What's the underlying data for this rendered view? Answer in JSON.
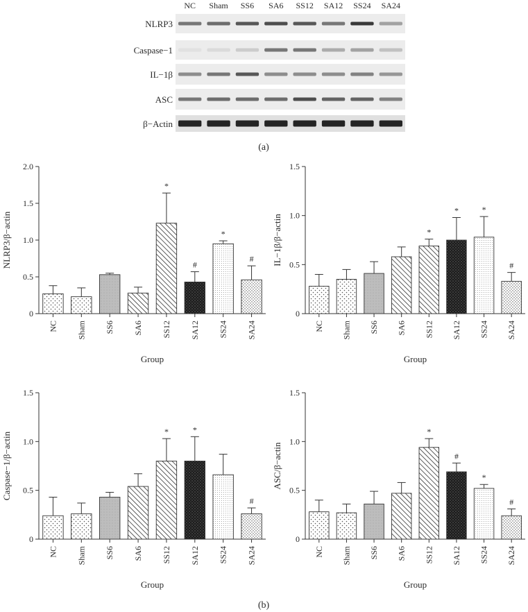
{
  "panel_a": {
    "label": "(a)",
    "lanes": [
      "NC",
      "Sham",
      "SS6",
      "SA6",
      "SS12",
      "SA12",
      "SS24",
      "SA24"
    ],
    "rows": [
      {
        "label": "NLRP3",
        "intensity": [
          0.55,
          0.6,
          0.7,
          0.75,
          0.7,
          0.55,
          0.85,
          0.35
        ]
      },
      {
        "label": "Caspase−1",
        "intensity": [
          0.05,
          0.08,
          0.15,
          0.55,
          0.55,
          0.3,
          0.35,
          0.2
        ]
      },
      {
        "label": "IL−1β",
        "intensity": [
          0.45,
          0.55,
          0.7,
          0.45,
          0.45,
          0.45,
          0.5,
          0.4
        ]
      },
      {
        "label": "ASC",
        "intensity": [
          0.55,
          0.6,
          0.6,
          0.6,
          0.75,
          0.65,
          0.65,
          0.5
        ]
      },
      {
        "label": "β−Actin",
        "intensity": [
          0.95,
          0.95,
          0.95,
          0.95,
          0.95,
          0.95,
          0.95,
          0.95
        ]
      }
    ]
  },
  "panel_b_label": "(b)",
  "chart_data": [
    {
      "type": "bar",
      "categories": [
        "NC",
        "Sham",
        "SS6",
        "SA6",
        "SS12",
        "SA12",
        "SS24",
        "SA24"
      ],
      "values": [
        0.27,
        0.23,
        0.53,
        0.28,
        1.23,
        0.43,
        0.95,
        0.46
      ],
      "errors": [
        0.11,
        0.12,
        0.02,
        0.08,
        0.41,
        0.14,
        0.04,
        0.19
      ],
      "marks": [
        "",
        "",
        "",
        "",
        "*",
        "#",
        "*",
        "#"
      ],
      "patterns": [
        "dots",
        "dots",
        "gray",
        "diag",
        "diag",
        "dark",
        "fine",
        "vlines"
      ],
      "title": "",
      "xlabel": "Group",
      "ylabel": "NLRP3/β−actin",
      "ylim": [
        0,
        2.0
      ],
      "yticks": [
        "0",
        "0.5",
        "1.0",
        "1.5",
        "2.0"
      ],
      "ytick_values": [
        0,
        0.5,
        1.0,
        1.5,
        2.0
      ]
    },
    {
      "type": "bar",
      "categories": [
        "NC",
        "Sham",
        "SS6",
        "SA6",
        "SS12",
        "SA12",
        "SS24",
        "SA24"
      ],
      "values": [
        0.28,
        0.35,
        0.41,
        0.58,
        0.69,
        0.75,
        0.78,
        0.33
      ],
      "errors": [
        0.12,
        0.1,
        0.12,
        0.1,
        0.07,
        0.23,
        0.21,
        0.09
      ],
      "marks": [
        "",
        "",
        "",
        "",
        "*",
        "*",
        "*",
        "#"
      ],
      "patterns": [
        "dots",
        "dots",
        "gray",
        "diag",
        "diag",
        "dark",
        "fine",
        "vlines"
      ],
      "title": "",
      "xlabel": "Group",
      "ylabel": "IL−1β/β−actin",
      "ylim": [
        0,
        1.5
      ],
      "yticks": [
        "0",
        "0.5",
        "1.0",
        "1.5"
      ],
      "ytick_values": [
        0,
        0.5,
        1.0,
        1.5
      ]
    },
    {
      "type": "bar",
      "categories": [
        "NC",
        "Sham",
        "SS6",
        "SA6",
        "SS12",
        "SA12",
        "SS24",
        "SA24"
      ],
      "values": [
        0.24,
        0.26,
        0.43,
        0.54,
        0.8,
        0.8,
        0.66,
        0.26
      ],
      "errors": [
        0.19,
        0.11,
        0.05,
        0.13,
        0.23,
        0.25,
        0.21,
        0.06
      ],
      "marks": [
        "",
        "",
        "",
        "",
        "*",
        "*",
        "",
        "#"
      ],
      "patterns": [
        "dots",
        "dots",
        "gray",
        "diag",
        "diag",
        "dark",
        "fine",
        "vlines"
      ],
      "title": "",
      "xlabel": "Group",
      "ylabel": "Caspase−1/β−actin",
      "ylim": [
        0,
        1.5
      ],
      "yticks": [
        "0",
        "0.5",
        "1.0",
        "1.5"
      ],
      "ytick_values": [
        0,
        0.5,
        1.0,
        1.5
      ]
    },
    {
      "type": "bar",
      "categories": [
        "NC",
        "Sham",
        "SS6",
        "SA6",
        "SS12",
        "SA12",
        "SS24",
        "SA24"
      ],
      "values": [
        0.28,
        0.27,
        0.36,
        0.47,
        0.94,
        0.69,
        0.52,
        0.24
      ],
      "errors": [
        0.12,
        0.09,
        0.13,
        0.11,
        0.09,
        0.09,
        0.04,
        0.07
      ],
      "marks": [
        "",
        "",
        "",
        "",
        "*",
        "#",
        "*",
        "#"
      ],
      "patterns": [
        "dots",
        "dots",
        "gray",
        "diag",
        "diag",
        "dark",
        "fine",
        "vlines"
      ],
      "title": "",
      "xlabel": "Group",
      "ylabel": "ASC/β−actin",
      "ylim": [
        0,
        1.5
      ],
      "yticks": [
        "0",
        "0.5",
        "1.0",
        "1.5"
      ],
      "ytick_values": [
        0,
        0.5,
        1.0,
        1.5
      ]
    }
  ]
}
